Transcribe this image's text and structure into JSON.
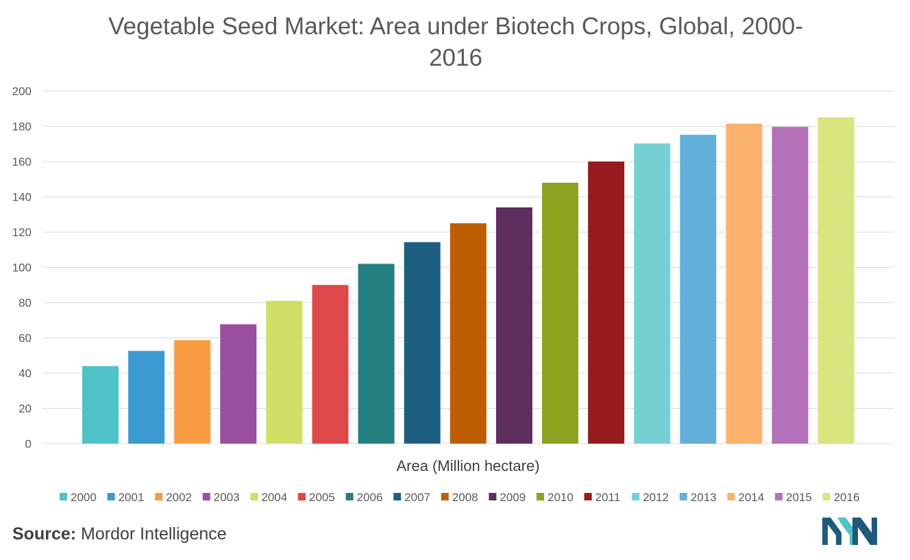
{
  "chart_data": {
    "type": "bar",
    "title": "Vegetable Seed Market: Area under Biotech Crops, Global, 2000-2016",
    "xlabel": "Area (Million hectare)",
    "ylabel": "",
    "ylim": [
      0,
      200
    ],
    "yticks": [
      0,
      20,
      40,
      60,
      80,
      100,
      120,
      140,
      160,
      180,
      200
    ],
    "grid": true,
    "legend_position": "bottom",
    "series": [
      {
        "name": "2000",
        "value": 44,
        "color": "#4fc3c8"
      },
      {
        "name": "2001",
        "value": 52.6,
        "color": "#3b9bd1"
      },
      {
        "name": "2002",
        "value": 58.7,
        "color": "#f99b43"
      },
      {
        "name": "2003",
        "value": 67.7,
        "color": "#9b4f9f"
      },
      {
        "name": "2004",
        "value": 81,
        "color": "#cfe067"
      },
      {
        "name": "2005",
        "value": 90,
        "color": "#de4848"
      },
      {
        "name": "2006",
        "value": 102,
        "color": "#257f80"
      },
      {
        "name": "2007",
        "value": 114.3,
        "color": "#1e5e80"
      },
      {
        "name": "2008",
        "value": 125,
        "color": "#bd5e05"
      },
      {
        "name": "2009",
        "value": 134,
        "color": "#5c2f5e"
      },
      {
        "name": "2010",
        "value": 148,
        "color": "#8ea321"
      },
      {
        "name": "2011",
        "value": 160,
        "color": "#961b1f"
      },
      {
        "name": "2012",
        "value": 170.3,
        "color": "#76d0d3"
      },
      {
        "name": "2013",
        "value": 175.2,
        "color": "#62b0da"
      },
      {
        "name": "2014",
        "value": 181.5,
        "color": "#fcb26d"
      },
      {
        "name": "2015",
        "value": 179.7,
        "color": "#b271b8"
      },
      {
        "name": "2016",
        "value": 185.1,
        "color": "#d9e57f"
      }
    ]
  },
  "source": {
    "label": "Source:",
    "text": "Mordor Intelligence"
  },
  "colors": {
    "grid": "#d9d9d9",
    "axis_text": "#595959",
    "logo_dark": "#1e5a7a",
    "logo_light": "#4fc3c8"
  }
}
